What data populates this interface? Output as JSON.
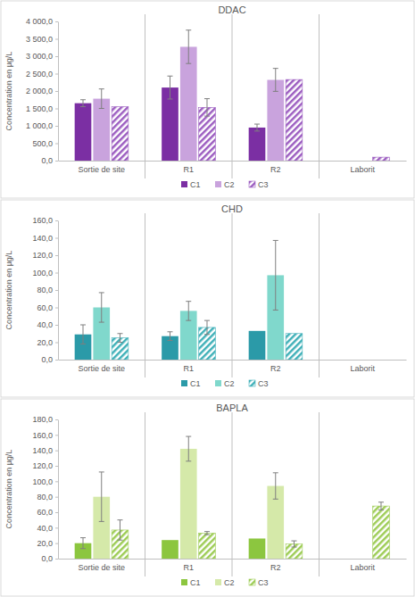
{
  "chart_data": [
    {
      "type": "bar",
      "title": "DDAC",
      "ylabel": "Concentration en µg/L",
      "categories": [
        "Sortie de site",
        "R1",
        "R2",
        "Laborit"
      ],
      "series": [
        {
          "name": "C1",
          "color": "#7b2fa3",
          "values": [
            1650,
            2100,
            950,
            null
          ],
          "errors": [
            100,
            330,
            100,
            null
          ]
        },
        {
          "name": "C2",
          "color": "#c9a3dd",
          "values": [
            1780,
            3270,
            2320,
            null
          ],
          "errors": [
            280,
            480,
            330,
            null
          ]
        },
        {
          "name": "C3",
          "color": "#9b5cc0",
          "values": [
            1550,
            1530,
            2330,
            100
          ],
          "errors": [
            null,
            250,
            null,
            null
          ]
        }
      ],
      "ylim": [
        0,
        4000
      ],
      "yticks": [
        {
          "value": 0,
          "label": "0,0"
        },
        {
          "value": 500,
          "label": "500,0"
        },
        {
          "value": 1000,
          "label": "1 000,0"
        },
        {
          "value": 1500,
          "label": "1 500,0"
        },
        {
          "value": 2000,
          "label": "2 000,0"
        },
        {
          "value": 2500,
          "label": "2 500,0"
        },
        {
          "value": 3000,
          "label": "3 000,0"
        },
        {
          "value": 3500,
          "label": "3 500,0"
        },
        {
          "value": 4000,
          "label": "4 000,0"
        }
      ],
      "grid": false,
      "legend": "bottom"
    },
    {
      "type": "bar",
      "title": "CHD",
      "ylabel": "Concentration en µg/L",
      "categories": [
        "Sortie de site",
        "R1",
        "R2",
        "Laborit"
      ],
      "series": [
        {
          "name": "C1",
          "color": "#2b9aa8",
          "values": [
            29,
            27,
            33,
            null
          ],
          "errors": [
            11,
            5,
            null,
            null
          ]
        },
        {
          "name": "C2",
          "color": "#80d8cc",
          "values": [
            60,
            56,
            97,
            null
          ],
          "errors": [
            17,
            11,
            40,
            null
          ]
        },
        {
          "name": "C3",
          "color": "#3fb0b8",
          "values": [
            25,
            37,
            30,
            null
          ],
          "errors": [
            5,
            8,
            null,
            null
          ]
        }
      ],
      "ylim": [
        0,
        160
      ],
      "yticks": [
        {
          "value": 0,
          "label": "0,0"
        },
        {
          "value": 20,
          "label": "20,0"
        },
        {
          "value": 40,
          "label": "40,0"
        },
        {
          "value": 60,
          "label": "60,0"
        },
        {
          "value": 80,
          "label": "80,0"
        },
        {
          "value": 100,
          "label": "100,0"
        },
        {
          "value": 120,
          "label": "120,0"
        },
        {
          "value": 140,
          "label": "140,0"
        },
        {
          "value": 160,
          "label": "160,0"
        }
      ],
      "grid": false,
      "legend": "bottom"
    },
    {
      "type": "bar",
      "title": "BAPLA",
      "ylabel": "Concentration en µg/L",
      "categories": [
        "Sortie de site",
        "R1",
        "R2",
        "Laborit"
      ],
      "series": [
        {
          "name": "C1",
          "color": "#8cc63f",
          "values": [
            20,
            24,
            26,
            null
          ],
          "errors": [
            7,
            null,
            null,
            null
          ]
        },
        {
          "name": "C2",
          "color": "#d5e9a9",
          "values": [
            80,
            142,
            94,
            null
          ],
          "errors": [
            32,
            16,
            17,
            null
          ]
        },
        {
          "name": "C3",
          "color": "#9dcc55",
          "values": [
            37,
            33,
            19,
            68
          ],
          "errors": [
            13,
            2,
            4,
            5
          ]
        }
      ],
      "ylim": [
        0,
        180
      ],
      "yticks": [
        {
          "value": 0,
          "label": "0,0"
        },
        {
          "value": 20,
          "label": "20,0"
        },
        {
          "value": 40,
          "label": "40,0"
        },
        {
          "value": 60,
          "label": "60,0"
        },
        {
          "value": 80,
          "label": "80,0"
        },
        {
          "value": 100,
          "label": "100,0"
        },
        {
          "value": 120,
          "label": "120,0"
        },
        {
          "value": 140,
          "label": "140,0"
        },
        {
          "value": 160,
          "label": "160,0"
        },
        {
          "value": 180,
          "label": "180,0"
        }
      ],
      "grid": false,
      "legend": "bottom"
    }
  ]
}
